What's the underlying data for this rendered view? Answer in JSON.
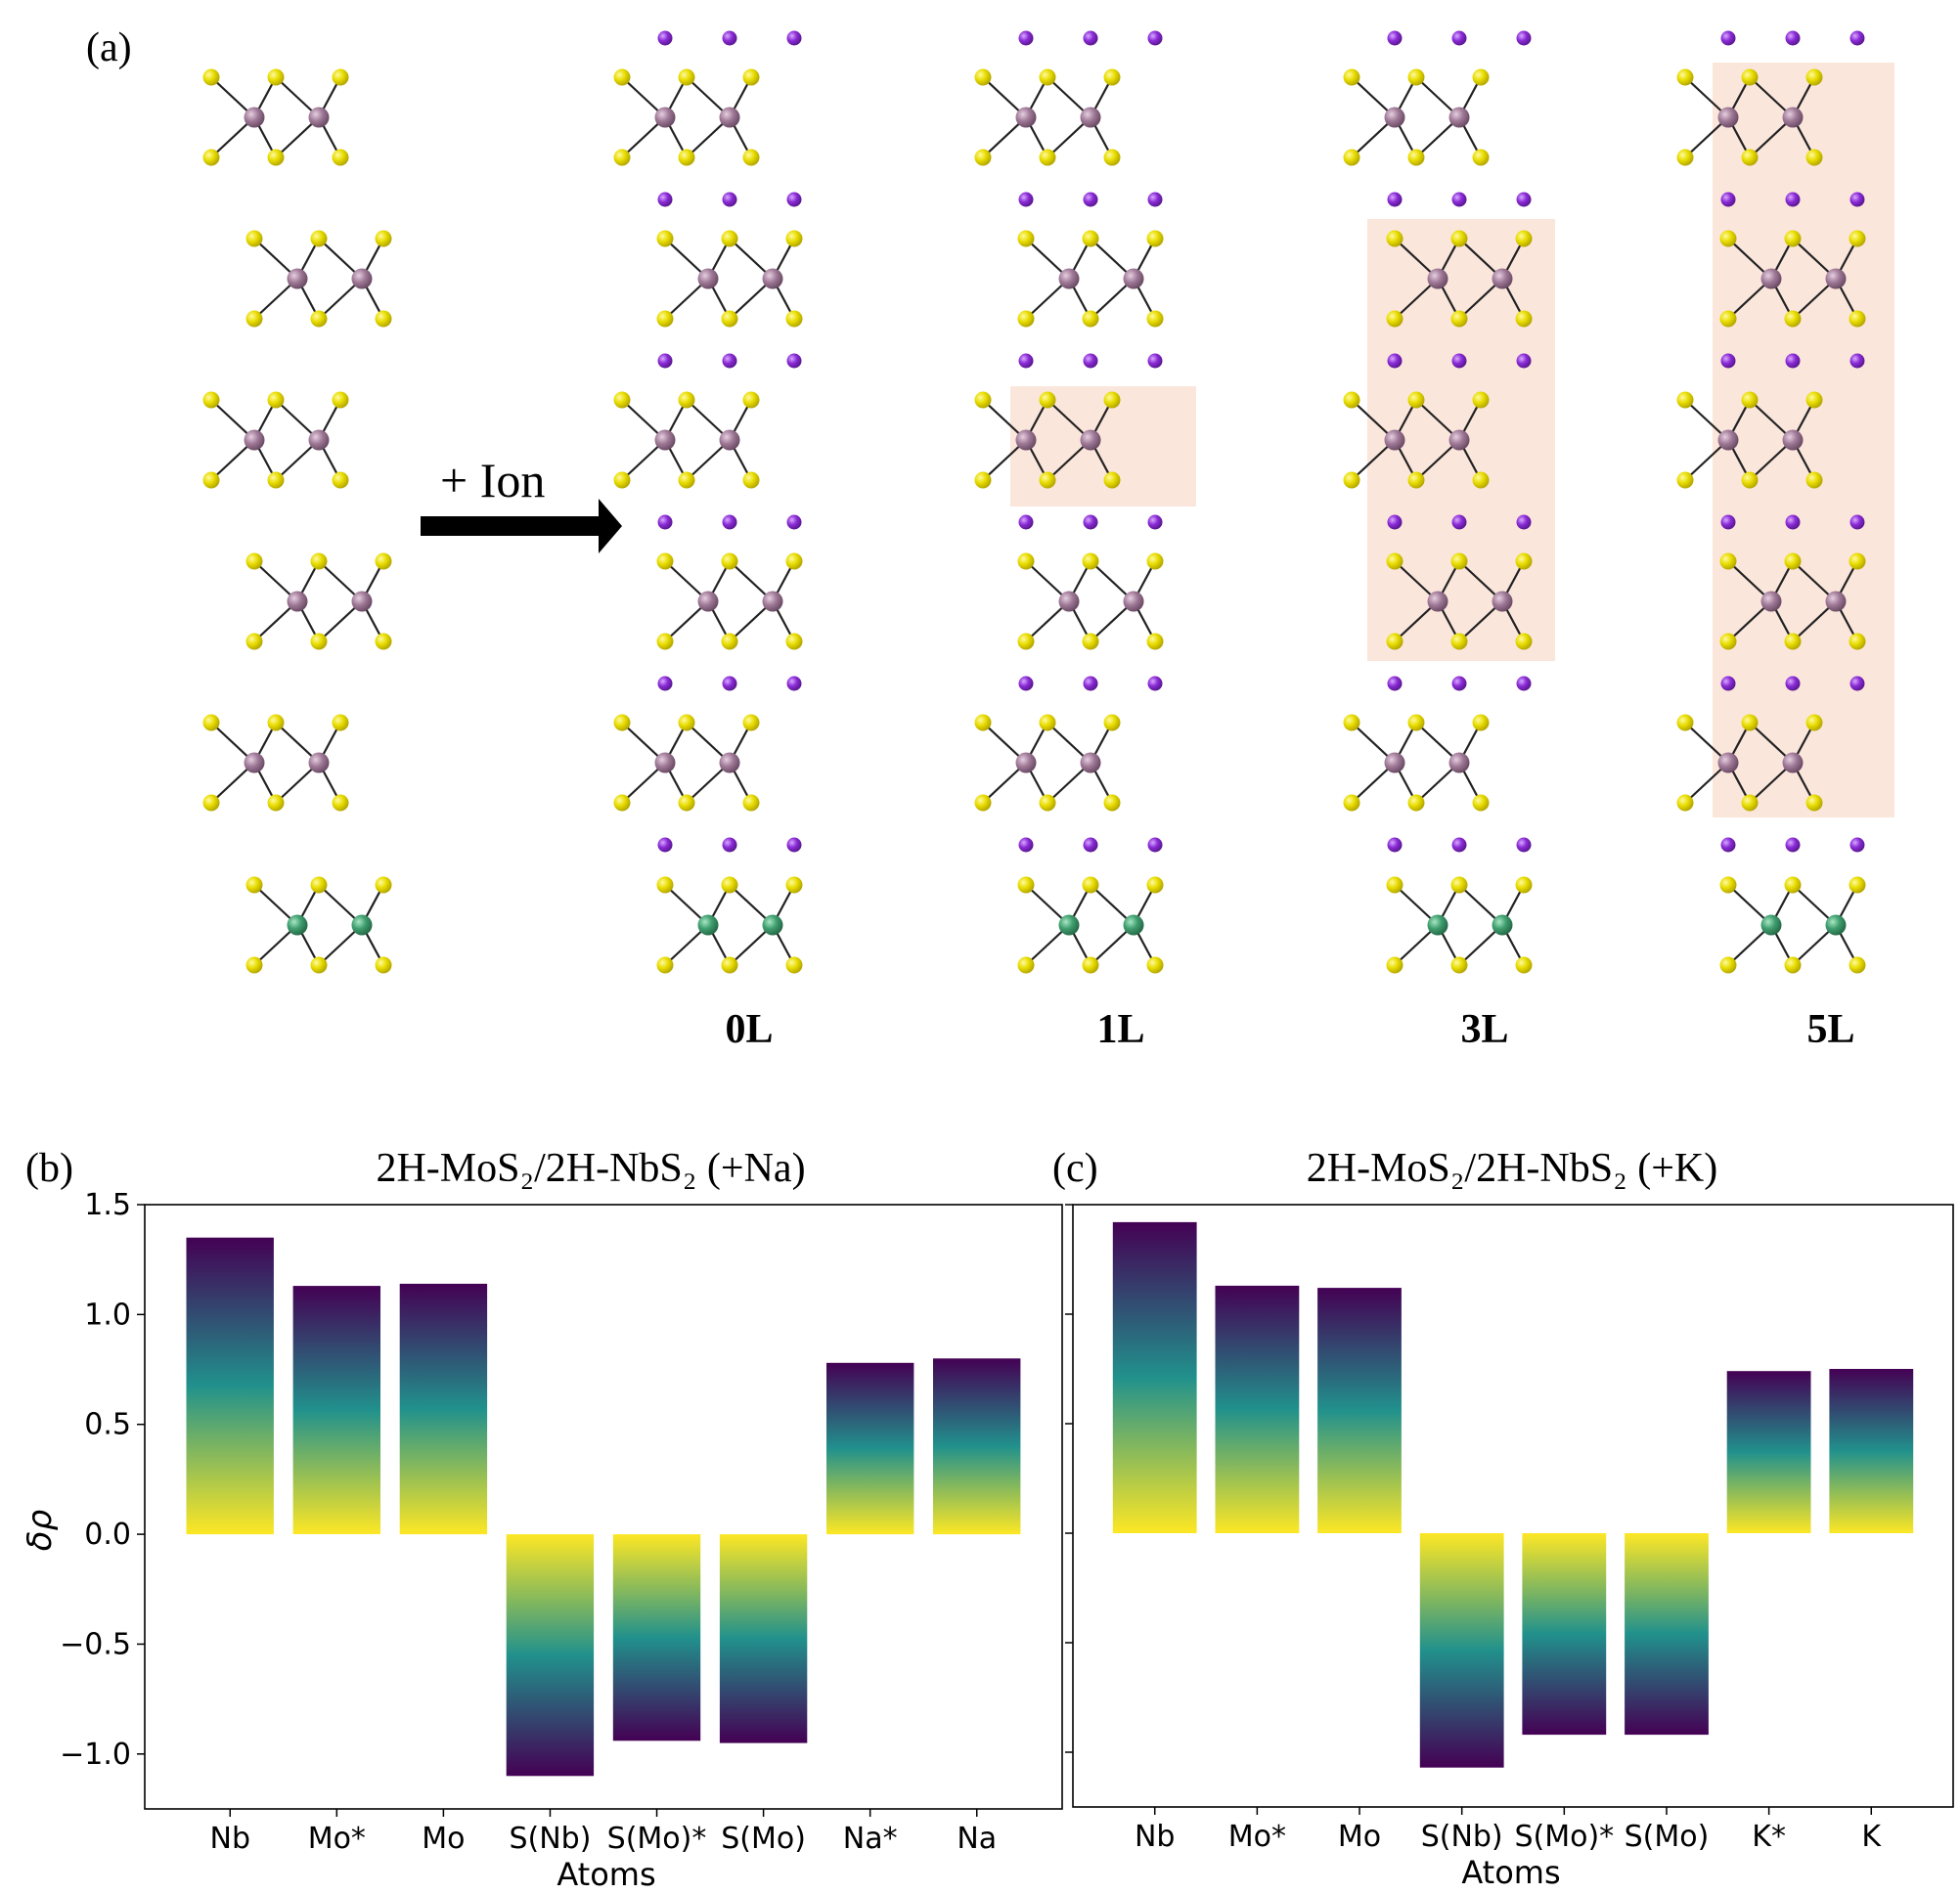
{
  "panel_a": {
    "label": "(a)",
    "arrow_label": "+ Ion",
    "column_labels": [
      "0L",
      "1L",
      "3L",
      "5L"
    ],
    "highlighted_layers": {
      "0L": 0,
      "1L": 1,
      "3L": 3,
      "5L": 5
    },
    "colors": {
      "sulfur": "#e6dc00",
      "molybdenum": "#a07a98",
      "niobium": "#3f9e6e",
      "ion": "#8a2bd6",
      "highlight": "#fbe6dc"
    }
  },
  "colormap": {
    "name": "viridis",
    "stops": [
      "#fde725",
      "#21918c",
      "#440154"
    ]
  },
  "chart_data": [
    {
      "type": "bar",
      "panel_label": "(b)",
      "title": "2H-MoS₂/2H-NbS₂ (+Na)",
      "xlabel": "Atoms",
      "ylabel": "δρ",
      "categories": [
        "Nb",
        "Mo*",
        "Mo",
        "S(Nb)",
        "S(Mo)*",
        "S(Mo)",
        "Na*",
        "Na"
      ],
      "values": [
        1.35,
        1.13,
        1.14,
        -1.1,
        -0.94,
        -0.95,
        0.78,
        0.8
      ],
      "ylim": [
        -1.25,
        1.5
      ],
      "yticks": [
        -1.0,
        -0.5,
        0.0,
        0.5,
        1.0,
        1.5
      ],
      "ytick_labels": [
        "−1.0",
        "−0.5",
        "0.0",
        "0.5",
        "1.0",
        "1.5"
      ],
      "show_ytick_labels": true
    },
    {
      "type": "bar",
      "panel_label": "(c)",
      "title": "2H-MoS₂/2H-NbS₂ (+K)",
      "xlabel": "Atoms",
      "ylabel": "",
      "categories": [
        "Nb",
        "Mo*",
        "Mo",
        "S(Nb)",
        "S(Mo)*",
        "S(Mo)",
        "K*",
        "K"
      ],
      "values": [
        1.42,
        1.13,
        1.12,
        -1.07,
        -0.92,
        -0.92,
        0.74,
        0.75
      ],
      "ylim": [
        -1.25,
        1.5
      ],
      "yticks": [
        -1.0,
        -0.5,
        0.0,
        0.5,
        1.0,
        1.5
      ],
      "ytick_labels": [
        "",
        "",
        "",
        "",
        "",
        ""
      ],
      "show_ytick_labels": false
    }
  ]
}
